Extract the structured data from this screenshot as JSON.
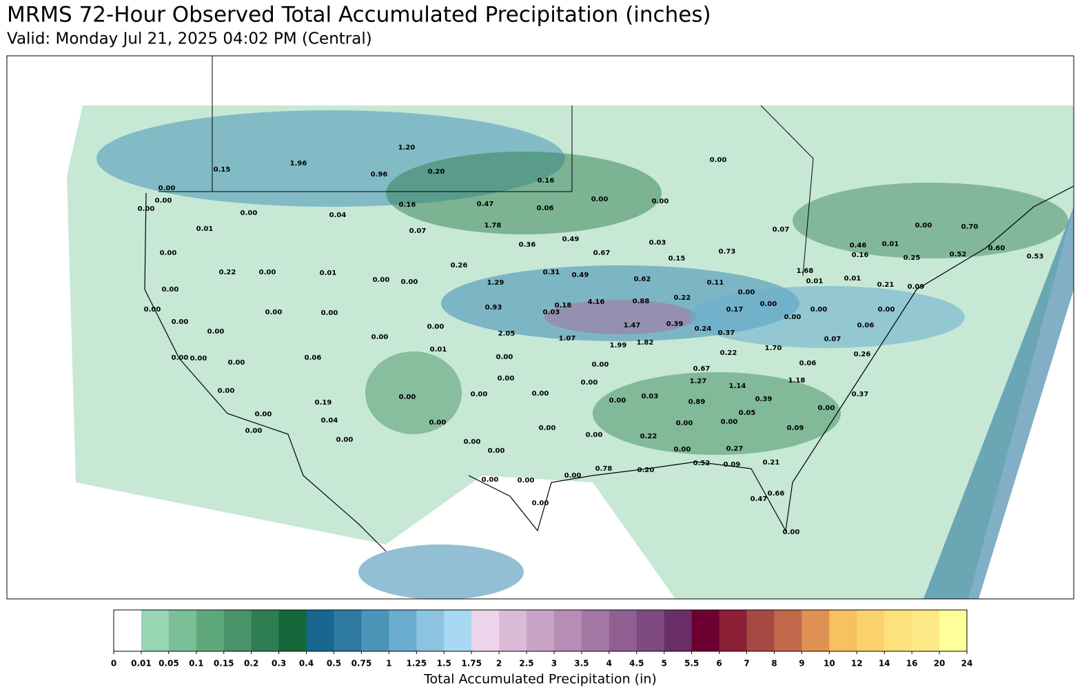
{
  "header": {
    "title": "MRMS 72-Hour Observed Total Accumulated Precipitation (inches)",
    "subtitle": "Valid: Monday Jul 21, 2025 04:02 PM (Central)"
  },
  "map": {
    "labels": [
      "0.15",
      "1.96",
      "1.20",
      "0.96",
      "0.20",
      "0.16",
      "0.00",
      "0.00",
      "0.00",
      "0.00",
      "0.00",
      "0.04",
      "0.16",
      "0.47",
      "0.06",
      "0.00",
      "0.00",
      "0.01",
      "1.78",
      "0.07",
      "0.07",
      "0.00",
      "0.70",
      "0.36",
      "0.49",
      "0.03",
      "0.46",
      "0.01",
      "0.60",
      "0.00",
      "0.67",
      "0.73",
      "0.15",
      "0.16",
      "0.25",
      "0.52",
      "0.53",
      "0.26",
      "0.22",
      "0.00",
      "0.01",
      "0.31",
      "0.49",
      "1.68",
      "0.00",
      "0.00",
      "1.29",
      "0.62",
      "0.11",
      "0.01",
      "0.01",
      "0.21",
      "0.09",
      "0.00",
      "0.00",
      "0.22",
      "4.16",
      "0.88",
      "0.18",
      "0.00",
      "0.00",
      "0.00",
      "0.00",
      "0.93",
      "0.03",
      "0.17",
      "0.00",
      "0.00",
      "0.00",
      "0.00",
      "0.00",
      "1.47",
      "0.39",
      "0.24",
      "0.06",
      "0.00",
      "2.05",
      "0.37",
      "0.00",
      "1.07",
      "1.82",
      "1.99",
      "0.07",
      "0.01",
      "1.70",
      "0.22",
      "0.26",
      "0.00",
      "0.00",
      "0.06",
      "0.00",
      "0.00",
      "0.00",
      "0.06",
      "0.67",
      "0.00",
      "0.00",
      "1.27",
      "1.18",
      "1.14",
      "0.00",
      "0.00",
      "0.00",
      "0.00",
      "0.03",
      "0.37",
      "0.39",
      "0.19",
      "0.00",
      "0.89",
      "0.00",
      "0.00",
      "0.05",
      "0.04",
      "0.00",
      "0.00",
      "0.00",
      "0.00",
      "0.00",
      "0.09",
      "0.00",
      "0.22",
      "0.00",
      "0.00",
      "0.00",
      "0.00",
      "0.27",
      "0.52",
      "0.09",
      "0.21",
      "0.78",
      "0.20",
      "0.00",
      "0.00",
      "0.00",
      "0.66",
      "0.47",
      "0.00",
      "0.00"
    ]
  },
  "colorbar": {
    "ticks": [
      0,
      0.01,
      0.05,
      0.1,
      0.15,
      0.2,
      0.3,
      0.4,
      0.5,
      0.75,
      1,
      1.25,
      1.5,
      1.75,
      2,
      2.5,
      3,
      3.5,
      4,
      4.5,
      5,
      5.5,
      6,
      7,
      8,
      9,
      10,
      12,
      14,
      16,
      20,
      24
    ],
    "colors": [
      "#ffffff",
      "#97d5b3",
      "#7bbf98",
      "#5fa87c",
      "#4a9268",
      "#2f7d52",
      "#16683a",
      "#186790",
      "#2e7aa0",
      "#4b95b9",
      "#6aadcf",
      "#8bc3e1",
      "#a7daf2",
      "#ecd5ea",
      "#dbbbd7",
      "#c9a3c6",
      "#b78db5",
      "#a476a3",
      "#905f91",
      "#7d4980",
      "#6a2f69",
      "#6c0031",
      "#8b2036",
      "#a54a42",
      "#c0694a",
      "#df9253",
      "#f7c060",
      "#fbd26e",
      "#fde27c",
      "#fdea86",
      "#ffff99"
    ],
    "label": "Total Accumulated Precipitation (in)"
  }
}
